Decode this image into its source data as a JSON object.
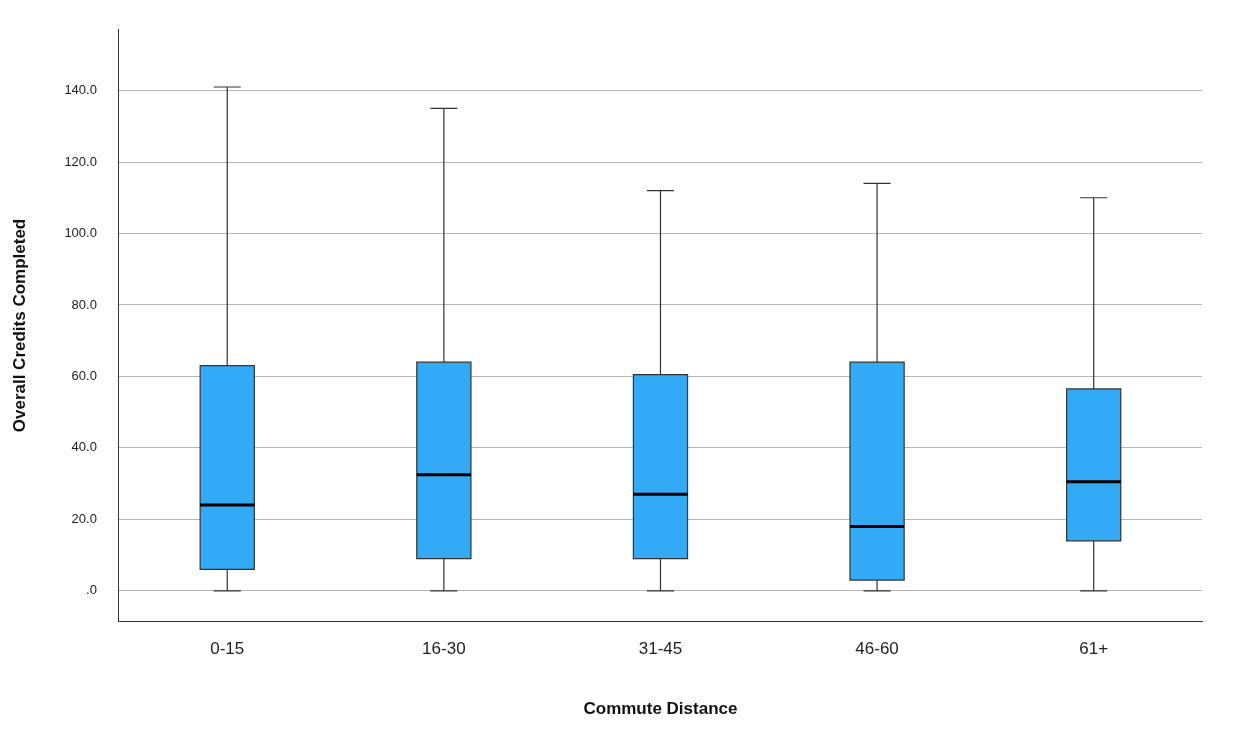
{
  "chart_data": {
    "type": "box",
    "xlabel": "Commute Distance",
    "ylabel": "Overall Credits Completed",
    "categories": [
      "0-15",
      "16-30",
      "31-45",
      "46-60",
      "61+"
    ],
    "color": "#33aaf5",
    "boxes": [
      {
        "low": 0,
        "q1": 6,
        "median": 24,
        "q3": 63,
        "high": 141
      },
      {
        "low": 0,
        "q1": 9,
        "median": 32.5,
        "q3": 64,
        "high": 135
      },
      {
        "low": 0,
        "q1": 9,
        "median": 27,
        "q3": 60.5,
        "high": 112
      },
      {
        "low": 0,
        "q1": 3,
        "median": 18,
        "q3": 64,
        "high": 114
      },
      {
        "low": 0,
        "q1": 14,
        "median": 30.5,
        "q3": 56.5,
        "high": 110
      }
    ],
    "ylim": [
      -8.5,
      157
    ],
    "yticks": [
      {
        "value": 0,
        "label": ".0"
      },
      {
        "value": 20,
        "label": "20.0"
      },
      {
        "value": 40,
        "label": "40.0"
      },
      {
        "value": 60,
        "label": "60.0"
      },
      {
        "value": 80,
        "label": "80.0"
      },
      {
        "value": 100,
        "label": "100.0"
      },
      {
        "value": 120,
        "label": "120.0"
      },
      {
        "value": 140,
        "label": "140.0"
      }
    ],
    "grid": "y",
    "legend": false
  }
}
